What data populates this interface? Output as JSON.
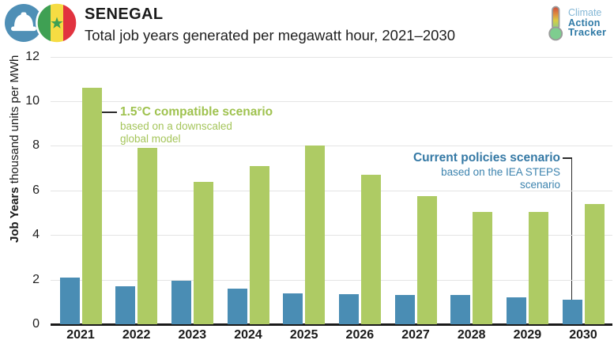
{
  "header": {
    "country": "SENEGAL",
    "subtitle": "Total job years generated per megawatt hour, 2021–2030",
    "badge": {
      "left_icon": "hard-hat-icon",
      "right_icon": "senegal-flag-icon",
      "circle_color": "#4f8fb6",
      "flag_colors": {
        "green": "#3fa053",
        "yellow": "#f6dc43",
        "red": "#e1333f"
      }
    },
    "logo": {
      "icon": "thermometer-icon",
      "line1": "Climate",
      "line2": "Action",
      "line3": "Tracker",
      "light_blue": "#84b7d5",
      "dark_blue": "#2f7aa6"
    }
  },
  "chart_data": {
    "type": "bar",
    "title": "Total job years generated per megawatt hour, 2021–2030",
    "categories": [
      "2021",
      "2022",
      "2023",
      "2024",
      "2025",
      "2026",
      "2027",
      "2028",
      "2029",
      "2030"
    ],
    "series": [
      {
        "name": "Current policies scenario",
        "color": "#4a8db4",
        "values": [
          2.1,
          1.7,
          1.95,
          1.6,
          1.4,
          1.35,
          1.3,
          1.3,
          1.2,
          1.1
        ]
      },
      {
        "name": "1.5°C compatible scenario",
        "color": "#aecb64",
        "values": [
          10.6,
          7.9,
          6.4,
          7.1,
          8.0,
          6.7,
          5.75,
          5.05,
          5.05,
          5.4
        ]
      }
    ],
    "ylabel_bold": "Job Years",
    "ylabel_rest": " thousand units per MWh",
    "xlabel": "",
    "ylim": [
      0,
      12
    ],
    "yticks": [
      0,
      2,
      4,
      6,
      8,
      10,
      12
    ],
    "grid": true,
    "legend_position": "annotations-on-plot",
    "annotations": [
      {
        "title": "1.5°C compatible scenario",
        "line1": "based on a downscaled",
        "line2": "global model",
        "color": "#a5c55b",
        "align": "left",
        "points_to": "2021 green bar"
      },
      {
        "title": "Current policies scenario",
        "line1": "based on the IEA STEPS",
        "line2": "scenario",
        "color": "#3c83ae",
        "align": "right",
        "points_to": "2030 blue bar"
      }
    ]
  }
}
